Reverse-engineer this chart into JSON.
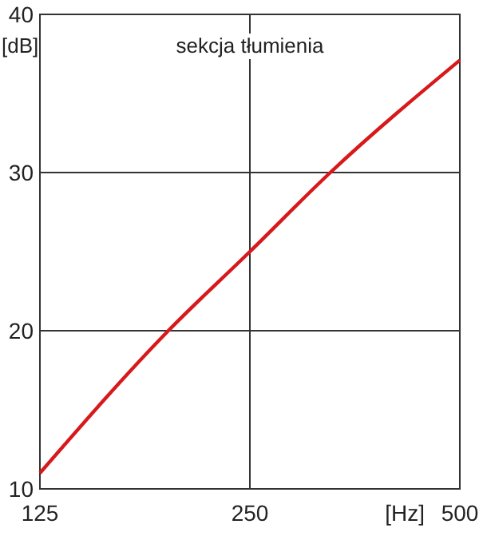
{
  "chart_data": {
    "type": "line",
    "xlabel": "[Hz]",
    "ylabel": "[dB]",
    "annotations": [
      "sekcja tłumienia"
    ],
    "x": [
      125,
      191,
      250,
      326,
      500
    ],
    "series": [
      {
        "color": "#d7191c",
        "values": [
          11,
          20,
          25,
          30,
          37.1
        ]
      }
    ],
    "xlim": [
      125,
      500
    ],
    "xticks": [
      125,
      250,
      500
    ],
    "ylim": [
      10,
      40
    ],
    "yticks": [
      10,
      20,
      30,
      40
    ],
    "log": "x",
    "grid": true
  }
}
